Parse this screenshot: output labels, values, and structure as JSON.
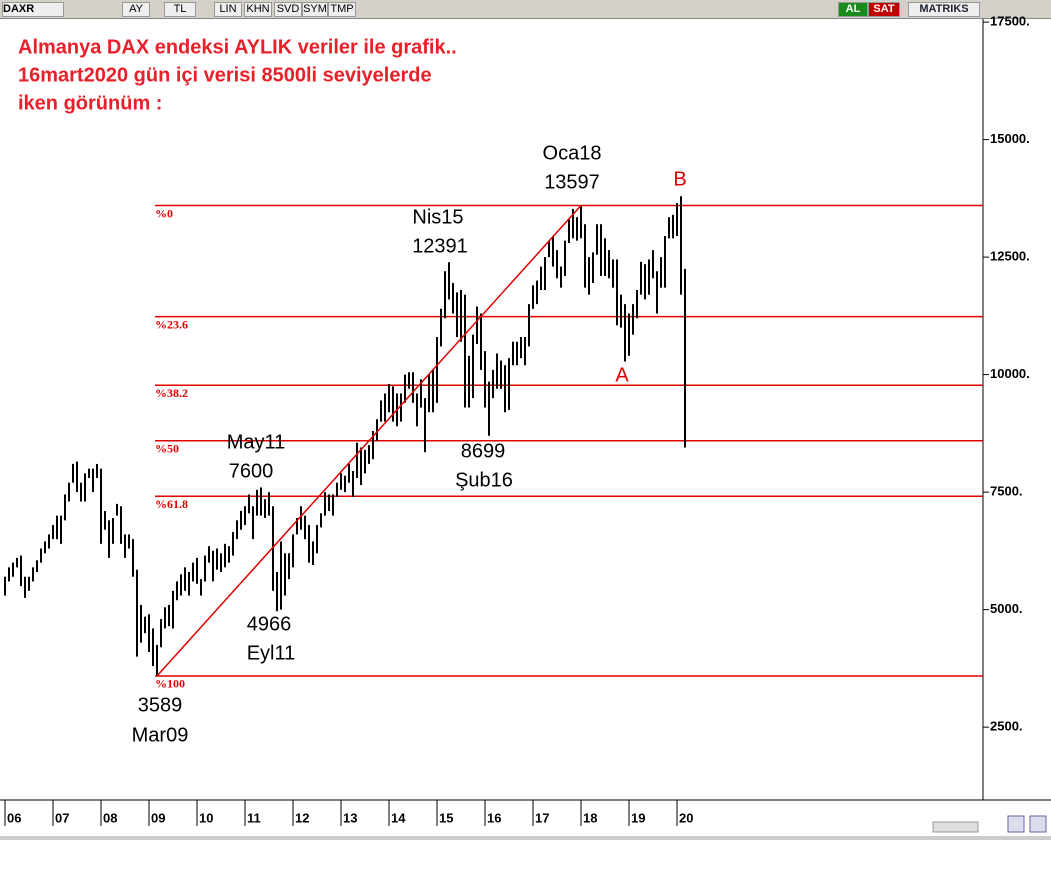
{
  "toolbar": {
    "symbol": "DAXR",
    "buttons": [
      "AY",
      "TL",
      "LIN",
      "KHN",
      "SVD",
      "SYM",
      "TMP"
    ],
    "buy": "AL",
    "sell": "SAT",
    "brand": "MATRIKS"
  },
  "chart_data": {
    "type": "hilo",
    "title_lines": [
      "Almanya DAX endeksi AYLIK veriler ile grafik..",
      "16mart2020 gün içi verisi 8500li seviyelerde",
      "iken görünüm :"
    ],
    "x_labels": [
      "06",
      "07",
      "08",
      "09",
      "10",
      "11",
      "12",
      "13",
      "14",
      "15",
      "16",
      "17",
      "18",
      "19",
      "20"
    ],
    "color": "#000000",
    "high": [
      5700,
      5900,
      6000,
      6100,
      6150,
      5700,
      5700,
      5900,
      6050,
      6300,
      6450,
      6600,
      6800,
      7000,
      7000,
      7450,
      7700,
      8100,
      8150,
      7700,
      7900,
      8000,
      8000,
      8100,
      8000,
      7100,
      6900,
      6950,
      7250,
      7200,
      6600,
      6600,
      6500,
      5850,
      5100,
      4850,
      4900,
      4600,
      4250,
      4800,
      5050,
      5100,
      5400,
      5600,
      5750,
      5900,
      5800,
      6000,
      6100,
      5650,
      6150,
      6350,
      6250,
      6300,
      6200,
      6400,
      6350,
      6650,
      6900,
      7100,
      7200,
      7450,
      7200,
      7550,
      7600,
      7350,
      7500,
      7200,
      5800,
      6450,
      6200,
      6200,
      6600,
      6950,
      7200,
      7000,
      6800,
      6450,
      6800,
      7050,
      7500,
      7450,
      7450,
      7700,
      7900,
      7850,
      8100,
      7950,
      8550,
      8450,
      8400,
      8500,
      8800,
      9050,
      9450,
      9600,
      9800,
      9750,
      9600,
      9600,
      10000,
      10050,
      10050,
      9600,
      9900,
      9500,
      10000,
      10100,
      10800,
      11400,
      12200,
      12391,
      11950,
      11750,
      11800,
      11700,
      10400,
      10850,
      11450,
      11300,
      10500,
      9850,
      10100,
      10450,
      10300,
      10200,
      10350,
      10700,
      10700,
      10800,
      10800,
      11500,
      11900,
      12000,
      12300,
      12500,
      12850,
      12950,
      12650,
      12300,
      12850,
      13300,
      13525,
      13350,
      13597,
      13200,
      12500,
      12600,
      13200,
      13200,
      12900,
      12650,
      12450,
      12450,
      11700,
      11500,
      11300,
      11500,
      11800,
      12400,
      12350,
      12450,
      12650,
      12200,
      12500,
      12950,
      13350,
      13400,
      13650,
      13795,
      12250
    ],
    "low": [
      5300,
      5600,
      5700,
      5900,
      5500,
      5250,
      5400,
      5600,
      5800,
      6000,
      6200,
      6300,
      6500,
      6500,
      6400,
      6900,
      7300,
      7700,
      7500,
      7300,
      7300,
      7800,
      7500,
      7800,
      6400,
      6700,
      6100,
      6400,
      7000,
      6400,
      6100,
      6300,
      5700,
      4000,
      4300,
      4500,
      4100,
      3800,
      3589,
      4200,
      4600,
      4650,
      4600,
      5200,
      5300,
      5400,
      5300,
      5600,
      5550,
      5300,
      5600,
      6000,
      5600,
      5850,
      5800,
      5900,
      6000,
      6150,
      6500,
      6700,
      6800,
      7050,
      6500,
      7000,
      7000,
      6950,
      7000,
      5400,
      4966,
      5000,
      5300,
      5650,
      5900,
      6600,
      6700,
      6500,
      6000,
      5950,
      6200,
      6750,
      7000,
      7100,
      7000,
      7400,
      7550,
      7500,
      7700,
      7400,
      7800,
      7650,
      7900,
      8100,
      8200,
      8600,
      9000,
      9000,
      9200,
      9000,
      8900,
      9000,
      9400,
      9700,
      9400,
      8900,
      9300,
      8350,
      9200,
      9200,
      9400,
      10600,
      11200,
      11600,
      11300,
      10800,
      10700,
      9300,
      9300,
      9500,
      10650,
      10100,
      9300,
      8699,
      9500,
      9700,
      9700,
      9200,
      9250,
      10200,
      10200,
      10350,
      10200,
      10600,
      11400,
      11500,
      11800,
      11800,
      12500,
      12300,
      12050,
      11850,
      12100,
      12800,
      12900,
      12850,
      12900,
      11850,
      11700,
      11950,
      12550,
      12100,
      12100,
      12050,
      11850,
      11050,
      11000,
      10280,
      10400,
      10850,
      11200,
      11700,
      11600,
      11700,
      12050,
      11300,
      11850,
      11850,
      12900,
      12900,
      12950,
      11700,
      8450
    ],
    "ylim": [
      950,
      17800
    ],
    "yticks": [
      {
        "value": 2500,
        "label": "2500."
      },
      {
        "value": 5000,
        "label": "5000."
      },
      {
        "value": 7500,
        "label": "7500."
      },
      {
        "value": 10000,
        "label": "10000."
      },
      {
        "value": 12500,
        "label": "12500."
      },
      {
        "value": 15000,
        "label": "15000."
      },
      {
        "value": 17500,
        "label": "17500."
      }
    ],
    "fib_color": "#e00000",
    "fib_levels": [
      {
        "label": "%0",
        "value": 13597
      },
      {
        "label": "%23.6",
        "value": 11235
      },
      {
        "label": "%38.2",
        "value": 9774
      },
      {
        "label": "%50",
        "value": 8593
      },
      {
        "label": "%61.8",
        "value": 7412
      },
      {
        "label": "%100",
        "value": 3589
      }
    ],
    "annotations": [
      {
        "text": "Oca18",
        "color": "#000000"
      },
      {
        "text": "13597",
        "color": "#000000"
      },
      {
        "text": "B",
        "color": "#e00000"
      },
      {
        "text": "Nis15",
        "color": "#000000"
      },
      {
        "text": "12391",
        "color": "#000000"
      },
      {
        "text": "May11",
        "color": "#000000"
      },
      {
        "text": "7600",
        "color": "#000000"
      },
      {
        "text": "8699",
        "color": "#000000"
      },
      {
        "text": "Şub16",
        "color": "#000000"
      },
      {
        "text": "4966",
        "color": "#000000"
      },
      {
        "text": "Eyl11",
        "color": "#000000"
      },
      {
        "text": "3589",
        "color": "#000000"
      },
      {
        "text": "Mar09",
        "color": "#000000"
      },
      {
        "text": "A",
        "color": "#e00000"
      }
    ]
  }
}
